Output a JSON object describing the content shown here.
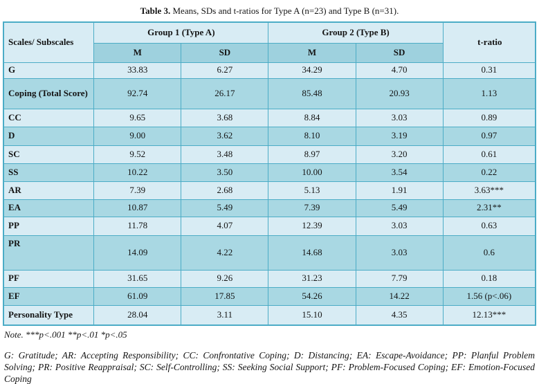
{
  "title": {
    "prefix": "Table 3.",
    "rest": " Means, SDs and t-ratios for Type A (n=23) and Type B (n=31)."
  },
  "table": {
    "header": {
      "scales": "Scales/ Subscales",
      "group1": "Group 1 (Type A)",
      "group2": "Group 2 (Type B)",
      "t_ratio": "t-ratio",
      "m": "M",
      "sd": "SD"
    },
    "rows": [
      {
        "label": "G",
        "g1_m": "33.83",
        "g1_sd": "6.27",
        "g2_m": "34.29",
        "g2_sd": "4.70",
        "t": "0.31"
      },
      {
        "label": "Coping (Total Score)",
        "g1_m": "92.74",
        "g1_sd": "26.17",
        "g2_m": "85.48",
        "g2_sd": "20.93",
        "t": "1.13"
      },
      {
        "label": "CC",
        "g1_m": "9.65",
        "g1_sd": "3.68",
        "g2_m": "8.84",
        "g2_sd": "3.03",
        "t": "0.89"
      },
      {
        "label": "D",
        "g1_m": "9.00",
        "g1_sd": "3.62",
        "g2_m": "8.10",
        "g2_sd": "3.19",
        "t": "0.97"
      },
      {
        "label": "SC",
        "g1_m": "9.52",
        "g1_sd": "3.48",
        "g2_m": "8.97",
        "g2_sd": "3.20",
        "t": "0.61"
      },
      {
        "label": "SS",
        "g1_m": "10.22",
        "g1_sd": "3.50",
        "g2_m": "10.00",
        "g2_sd": "3.54",
        "t": "0.22"
      },
      {
        "label": "AR",
        "g1_m": "7.39",
        "g1_sd": "2.68",
        "g2_m": "5.13",
        "g2_sd": "1.91",
        "t": "3.63***"
      },
      {
        "label": "EA",
        "g1_m": "10.87",
        "g1_sd": "5.49",
        "g2_m": "7.39",
        "g2_sd": "5.49",
        "t": "2.31**"
      },
      {
        "label": "PP",
        "g1_m": "11.78",
        "g1_sd": "4.07",
        "g2_m": "12.39",
        "g2_sd": "3.03",
        "t": "0.63"
      },
      {
        "label": "PR",
        "g1_m": "14.09",
        "g1_sd": "4.22",
        "g2_m": "14.68",
        "g2_sd": "3.03",
        "t": "0.6"
      },
      {
        "label": "PF",
        "g1_m": "31.65",
        "g1_sd": "9.26",
        "g2_m": "31.23",
        "g2_sd": "7.79",
        "t": "0.18"
      },
      {
        "label": "EF",
        "g1_m": "61.09",
        "g1_sd": "17.85",
        "g2_m": "54.26",
        "g2_sd": "14.22",
        "t": "1.56 (p<.06)"
      },
      {
        "label": "Personality Type",
        "g1_m": "28.04",
        "g1_sd": "3.11",
        "g2_m": "15.10",
        "g2_sd": "4.35",
        "t": "12.13***"
      }
    ]
  },
  "note": "Note. ***p<.001 **p<.01 *p<.05",
  "legend": "G: Gratitude; AR: Accepting Responsibility; CC: Confrontative Coping; D: Distancing; EA: Escape-Avoidance; PP: Planful Problem Solving; PR: Positive Reappraisal; SC: Self-Controlling; SS: Seeking Social Support; PF: Problem-Focused Coping; EF: Emotion-Focused Coping",
  "colors": {
    "light_row": "#D8ECF4",
    "medium_row": "#A9D8E3",
    "header_subrow": "#9ED1DE",
    "border": "#4BACC6"
  }
}
